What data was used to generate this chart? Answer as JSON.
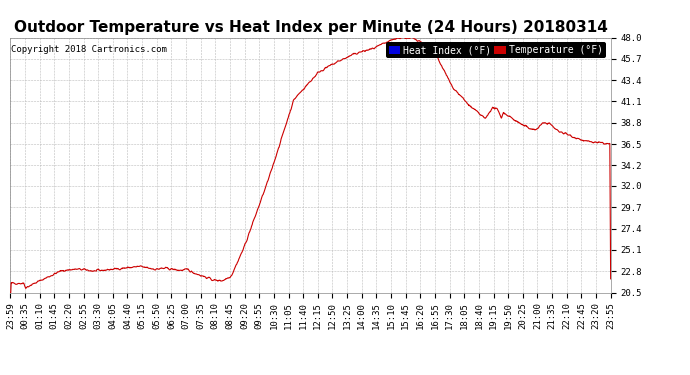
{
  "title": "Outdoor Temperature vs Heat Index per Minute (24 Hours) 20180314",
  "copyright": "Copyright 2018 Cartronics.com",
  "legend_labels": [
    "Heat Index (°F)",
    "Temperature (°F)"
  ],
  "legend_bg_colors": [
    "#0000dd",
    "#cc0000"
  ],
  "line_color": "#cc0000",
  "background_color": "#ffffff",
  "plot_bg_color": "#ffffff",
  "grid_color": "#bbbbbb",
  "ylim": [
    20.5,
    48.0
  ],
  "yticks": [
    20.5,
    22.8,
    25.1,
    27.4,
    29.7,
    32.0,
    34.2,
    36.5,
    38.8,
    41.1,
    43.4,
    45.7,
    48.0
  ],
  "xtick_labels": [
    "23:59",
    "00:35",
    "01:10",
    "01:45",
    "02:20",
    "02:55",
    "03:30",
    "04:05",
    "04:40",
    "05:15",
    "05:50",
    "06:25",
    "07:00",
    "07:35",
    "08:10",
    "08:45",
    "09:20",
    "09:55",
    "10:30",
    "11:05",
    "11:40",
    "12:15",
    "12:50",
    "13:25",
    "14:00",
    "14:35",
    "15:10",
    "15:45",
    "16:20",
    "16:55",
    "17:30",
    "18:05",
    "18:40",
    "19:15",
    "19:50",
    "20:25",
    "21:00",
    "21:35",
    "22:10",
    "22:45",
    "23:20",
    "23:55"
  ],
  "title_fontsize": 11,
  "tick_fontsize": 6.5,
  "copyright_fontsize": 6.5,
  "legend_fontsize": 7
}
